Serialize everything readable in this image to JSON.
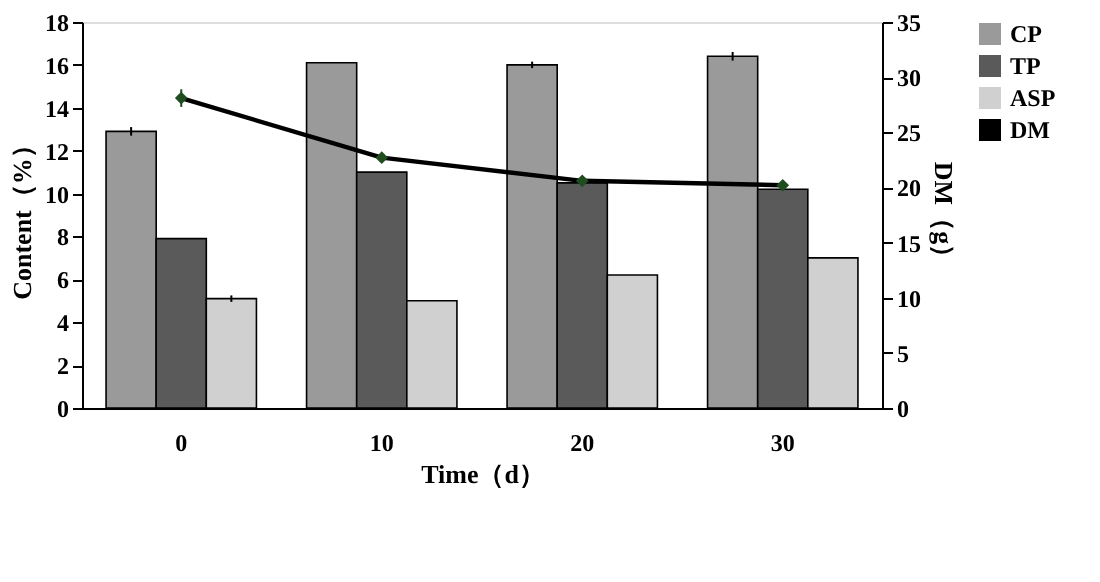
{
  "chart_data": {
    "type": "bar",
    "categories": [
      "0",
      "10",
      "20",
      "30"
    ],
    "xlabel": "Time（d）",
    "ylabel": "Content（%）",
    "y2label": "DM（g）",
    "series": [
      {
        "name": "CP",
        "color": "#9a9a9a",
        "values": [
          12.9,
          16.1,
          16.0,
          16.4
        ],
        "errors": [
          0.2,
          null,
          0.15,
          0.2
        ]
      },
      {
        "name": "TP",
        "color": "#5a5a5a",
        "values": [
          7.9,
          11.0,
          10.5,
          10.2
        ],
        "errors": [
          null,
          null,
          null,
          null
        ]
      },
      {
        "name": "ASP",
        "color": "#d0d0d0",
        "values": [
          5.1,
          5.0,
          6.2,
          7.0
        ],
        "errors": [
          0.15,
          null,
          null,
          null
        ]
      },
      {
        "name": "DM",
        "type": "line",
        "axis": "y2",
        "color": "#000000",
        "values": [
          28.1,
          22.7,
          20.6,
          20.2
        ],
        "errors": [
          0.8,
          0.4,
          0.3,
          0.3
        ]
      }
    ],
    "ylim": [
      0,
      18
    ],
    "yticks": [
      0,
      2,
      4,
      6,
      8,
      10,
      12,
      14,
      16,
      18
    ],
    "y2lim": [
      0,
      35
    ],
    "y2ticks": [
      0,
      5,
      10,
      15,
      20,
      25,
      30,
      35
    ],
    "marker": "diamond",
    "line_style": "solid",
    "legend": "top right",
    "grid": false
  }
}
